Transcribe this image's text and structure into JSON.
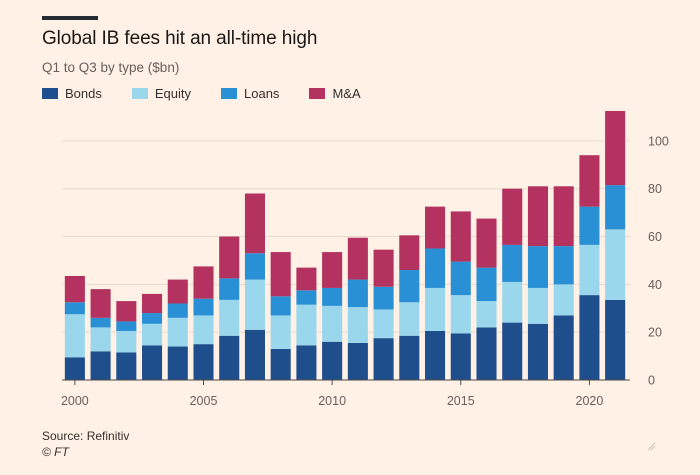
{
  "header": {
    "title": "Global IB fees hit an all-time high",
    "subtitle": "Q1 to Q3 by type ($bn)"
  },
  "footer": {
    "source": "Source: Refinitiv",
    "copyright": "© FT"
  },
  "chart_data": {
    "type": "bar",
    "stacked": true,
    "title": "Global IB fees hit an all-time high",
    "subtitle": "Q1 to Q3 by type ($bn)",
    "xlabel": "",
    "ylabel": "",
    "ylim": [
      0,
      115
    ],
    "y_ticks": [
      0,
      20,
      40,
      60,
      80,
      100
    ],
    "y_axis_position": "right",
    "x_ticks": [
      2000,
      2005,
      2010,
      2015,
      2020
    ],
    "grid": "horizontal",
    "legend_position": "top-left",
    "categories": [
      2000,
      2001,
      2002,
      2003,
      2004,
      2005,
      2006,
      2007,
      2008,
      2009,
      2010,
      2011,
      2012,
      2013,
      2014,
      2015,
      2016,
      2017,
      2018,
      2019,
      2020,
      2021
    ],
    "series": [
      {
        "name": "Bonds",
        "color": "#1f4e8c",
        "values": [
          9.5,
          12,
          11.5,
          14.5,
          14,
          15,
          18.5,
          21,
          13,
          14.5,
          16,
          15.5,
          17.5,
          18.5,
          20.5,
          19.5,
          22,
          24,
          23.5,
          27,
          35.5,
          33.5
        ]
      },
      {
        "name": "Equity",
        "color": "#9ad7ec",
        "values": [
          18,
          10,
          9,
          9,
          12,
          12,
          15,
          21,
          14,
          17,
          15,
          15,
          12,
          14,
          18,
          16,
          11,
          17,
          15,
          13,
          21,
          29.5
        ]
      },
      {
        "name": "Loans",
        "color": "#2990d6",
        "values": [
          5,
          4,
          4,
          4.5,
          6,
          7,
          9,
          11,
          8,
          6,
          7.5,
          11.5,
          9.5,
          13.5,
          16.5,
          14,
          14,
          15.5,
          17.5,
          16,
          16,
          18.5
        ]
      },
      {
        "name": "M&A",
        "color": "#b3325f",
        "values": [
          11,
          12,
          8.5,
          8,
          10,
          13.5,
          17.5,
          25,
          18.5,
          9.5,
          15,
          17.5,
          15.5,
          14.5,
          17.5,
          21,
          20.5,
          23.5,
          25,
          25,
          21.5,
          31
        ]
      }
    ]
  }
}
